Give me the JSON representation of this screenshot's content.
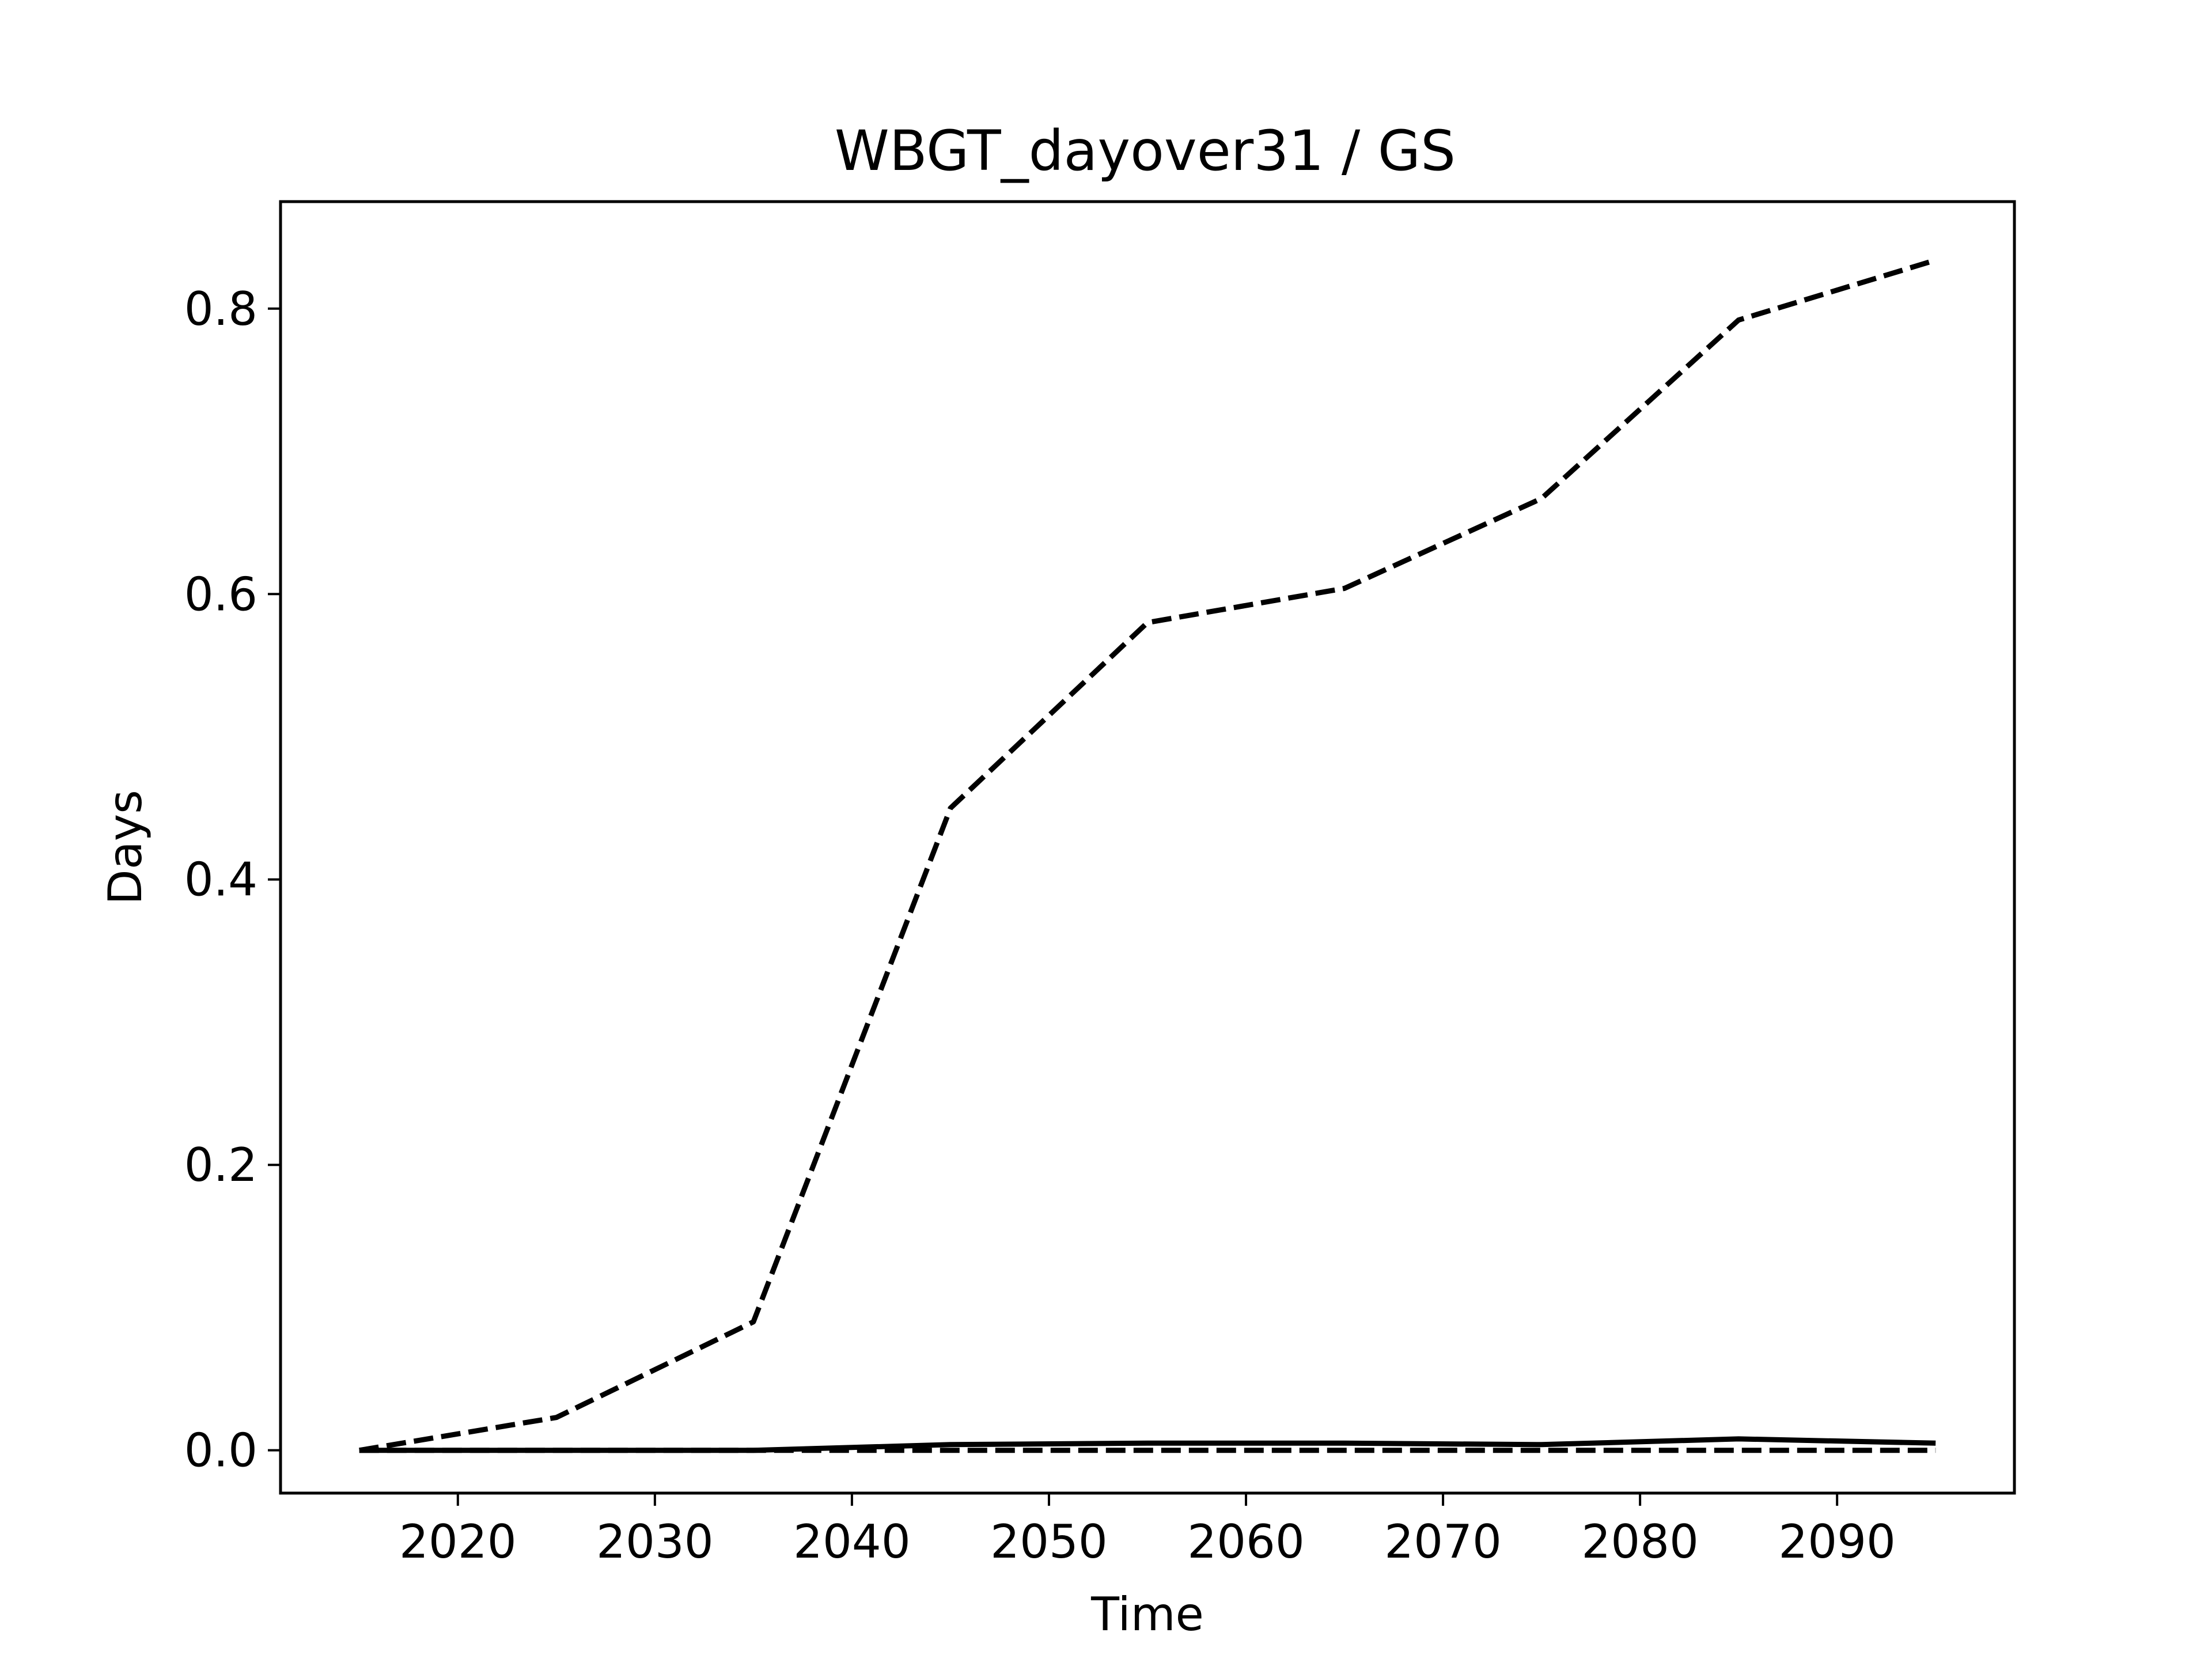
{
  "chart_data": {
    "type": "line",
    "title": "WBGT_dayover31 / GS",
    "xlabel": "Time",
    "ylabel": "Days",
    "xlim": [
      2011,
      2099
    ],
    "ylim": [
      -0.03,
      0.875
    ],
    "xticks": [
      2020,
      2030,
      2040,
      2050,
      2060,
      2070,
      2080,
      2090
    ],
    "yticks": [
      0.0,
      0.2,
      0.4,
      0.6,
      0.8
    ],
    "ytick_labels": [
      "0.0",
      "0.2",
      "0.4",
      "0.6",
      "0.8"
    ],
    "grid": false,
    "x": [
      2015,
      2025,
      2035,
      2045,
      2055,
      2065,
      2075,
      2085,
      2095
    ],
    "series": [
      {
        "style": "dashed",
        "color": "#000000",
        "values": [
          0.0,
          0.023,
          0.09,
          0.45,
          0.58,
          0.604,
          0.667,
          0.792,
          0.834
        ]
      },
      {
        "style": "solid",
        "color": "#000000",
        "values": [
          0.0,
          0.0,
          0.0,
          0.004,
          0.005,
          0.005,
          0.004,
          0.008,
          0.005
        ]
      },
      {
        "style": "dashed",
        "color": "#000000",
        "values": [
          0.0,
          0.0,
          0.0,
          0.0,
          0.0,
          0.0,
          0.0,
          0.0,
          0.0
        ]
      }
    ]
  }
}
